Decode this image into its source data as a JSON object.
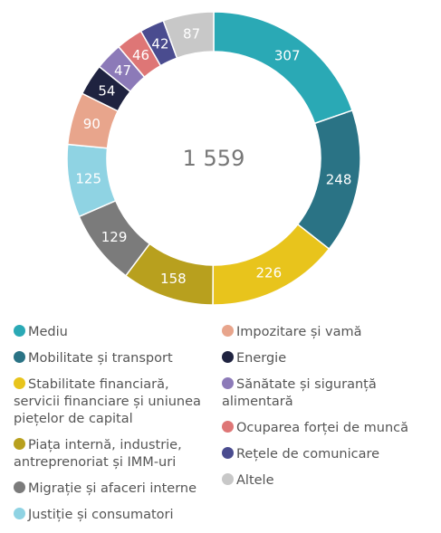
{
  "chart_data": {
    "type": "donut",
    "total_label": "1 559",
    "categories": [
      "Mediu",
      "Mobilitate și transport",
      "Stabilitate financiară, servicii financiare și uniunea piețelor de capital",
      "Piața internă, industrie, antreprenoriat și IMM-uri",
      "Migrație și afaceri interne",
      "Justiție și  consumatori",
      "Impozitare și vamă",
      "Energie",
      "Sănătate și siguranță alimentară",
      "Ocuparea forței de muncă",
      "Rețele de comunicare",
      "Altele"
    ],
    "values": [
      307,
      248,
      226,
      158,
      129,
      125,
      90,
      54,
      47,
      46,
      42,
      87
    ],
    "colors": [
      "#2aa9b5",
      "#2a7385",
      "#e8c41c",
      "#b8a01e",
      "#7b7b7b",
      "#8fd3e3",
      "#e8a58c",
      "#1f2340",
      "#8c7ab8",
      "#de7676",
      "#4a4c8f",
      "#c8c8c8"
    ]
  }
}
